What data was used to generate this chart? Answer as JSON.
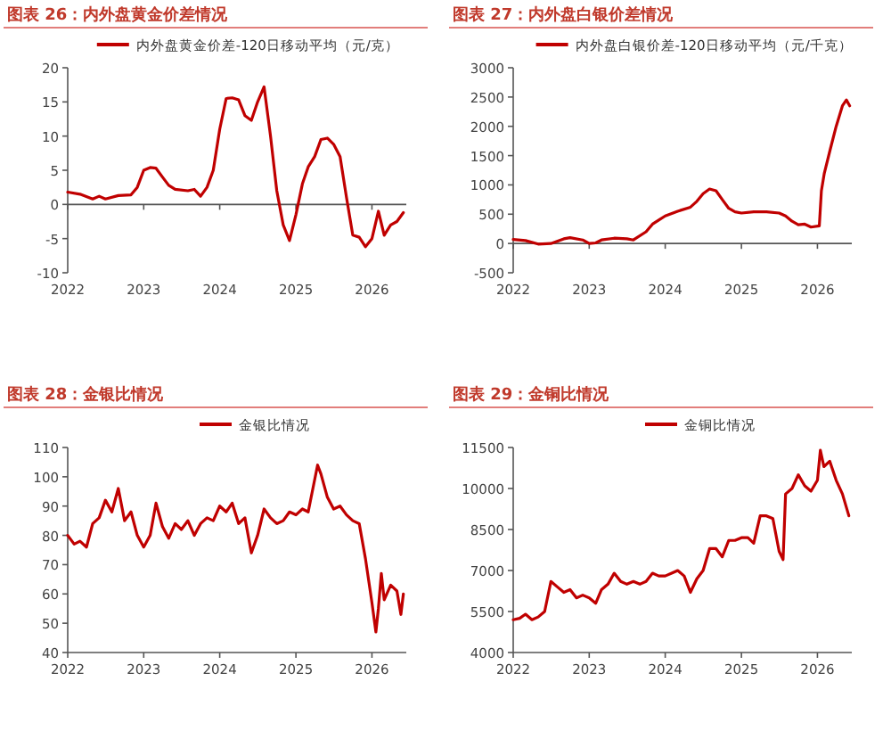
{
  "chart_data": [
    {
      "type": "line",
      "title": "图表 26：内外盘黄金价差情况",
      "legend": "top",
      "xlim": [
        "2022-01-01",
        "2026-06-15"
      ],
      "xticks": [
        "2022",
        "2023",
        "2024",
        "2025",
        "2026"
      ],
      "ylim": [
        -10,
        20
      ],
      "yticks": [
        -10,
        -5,
        0,
        5,
        10,
        15,
        20
      ],
      "x": [
        "2022-01",
        "2022-03",
        "2022-05",
        "2022-06",
        "2022-07",
        "2022-09",
        "2022-11",
        "2022-12",
        "2023-01",
        "2023-02",
        "2023-03",
        "2023-04",
        "2023-05",
        "2023-06",
        "2023-08",
        "2023-09",
        "2023-10",
        "2023-11",
        "2023-12",
        "2024-01",
        "2024-02",
        "2024-03",
        "2024-04",
        "2024-05",
        "2024-06",
        "2024-07",
        "2024-08",
        "2024-09",
        "2024-10",
        "2024-11",
        "2024-12",
        "2025-01",
        "2025-02",
        "2025-03",
        "2025-04",
        "2025-05",
        "2025-06",
        "2025-07",
        "2025-08",
        "2025-09",
        "2025-10",
        "2025-11",
        "2025-12",
        "2026-01",
        "2026-02",
        "2026-03",
        "2026-04",
        "2026-05",
        "2026-06"
      ],
      "series": [
        {
          "name": "内外盘黄金价差-120日移动平均（元/克）",
          "color": "#c00000",
          "values": [
            1.8,
            1.5,
            0.8,
            1.2,
            0.8,
            1.3,
            1.4,
            2.5,
            5,
            5.4,
            5.3,
            4,
            2.8,
            2.2,
            2,
            2.2,
            1.2,
            2.5,
            5,
            11,
            15.5,
            15.6,
            15.3,
            13,
            12.3,
            15,
            17.2,
            10,
            2,
            -3,
            -5.3,
            -1.5,
            3,
            5.5,
            7,
            9.5,
            9.7,
            8.8,
            7,
            1,
            -4.5,
            -4.8,
            -6.2,
            -5,
            -1,
            -4.5,
            -3,
            -2.5,
            -1.2
          ]
        }
      ]
    },
    {
      "type": "line",
      "title": "图表 27：内外盘白银价差情况",
      "legend": "top",
      "xlim": [
        "2022-01-01",
        "2026-06-15"
      ],
      "xticks": [
        "2022",
        "2023",
        "2024",
        "2025",
        "2026"
      ],
      "ylim": [
        -500,
        3000
      ],
      "yticks": [
        -500,
        0,
        500,
        1000,
        1500,
        2000,
        2500,
        3000
      ],
      "x": [
        "2022-01",
        "2022-03",
        "2022-05",
        "2022-07",
        "2022-09",
        "2022-10",
        "2022-12",
        "2023-01",
        "2023-02",
        "2023-03",
        "2023-05",
        "2023-07",
        "2023-08",
        "2023-10",
        "2023-11",
        "2023-12",
        "2024-01",
        "2024-03",
        "2024-05",
        "2024-06",
        "2024-07",
        "2024-08",
        "2024-09",
        "2024-10",
        "2024-11",
        "2024-12",
        "2025-01",
        "2025-03",
        "2025-05",
        "2025-07",
        "2025-08",
        "2025-09",
        "2025-10",
        "2025-11",
        "2025-12",
        "2026-01-10",
        "2026-01-20",
        "2026-02-03",
        "2026-03-03",
        "2026-04-01",
        "2026-05-01",
        "2026-05-20",
        "2026-06-05"
      ],
      "series": [
        {
          "name": "内外盘白银价差-120日移动平均（元/千克）",
          "color": "#c00000",
          "values": [
            70,
            50,
            -10,
            0,
            80,
            100,
            60,
            0,
            10,
            60,
            90,
            80,
            60,
            200,
            330,
            400,
            470,
            550,
            620,
            720,
            850,
            930,
            900,
            750,
            600,
            540,
            520,
            540,
            540,
            520,
            470,
            380,
            320,
            330,
            280,
            300,
            900,
            1200,
            1600,
            2000,
            2350,
            2450,
            2350
          ]
        }
      ]
    },
    {
      "type": "line",
      "title": "图表 28：金银比情况",
      "legend": "top",
      "xlim": [
        "2022-01-01",
        "2026-06-15"
      ],
      "xticks": [
        "2022",
        "2023",
        "2024",
        "2025",
        "2026"
      ],
      "ylim": [
        40,
        110
      ],
      "yticks": [
        40,
        50,
        60,
        70,
        80,
        90,
        100,
        110
      ],
      "x": [
        "2022-01",
        "2022-02",
        "2022-03",
        "2022-04",
        "2022-05",
        "2022-06",
        "2022-07",
        "2022-08",
        "2022-09",
        "2022-10",
        "2022-11",
        "2022-12",
        "2023-01",
        "2023-02",
        "2023-03",
        "2023-04",
        "2023-05",
        "2023-06",
        "2023-07",
        "2023-08",
        "2023-09",
        "2023-10",
        "2023-11",
        "2023-12",
        "2024-01",
        "2024-02",
        "2024-03",
        "2024-04",
        "2024-05",
        "2024-06",
        "2024-07",
        "2024-08",
        "2024-09",
        "2024-10",
        "2024-11",
        "2024-12",
        "2025-01",
        "2025-02",
        "2025-03",
        "2025-04-15",
        "2025-05",
        "2025-06",
        "2025-07",
        "2025-08",
        "2025-09",
        "2025-10",
        "2025-11",
        "2025-12",
        "2026-01",
        "2026-01-20",
        "2026-02",
        "2026-02-15",
        "2026-03",
        "2026-04",
        "2026-05",
        "2026-05-20",
        "2026-06"
      ],
      "series": [
        {
          "name": "金银比情况",
          "color": "#c00000",
          "values": [
            80,
            77,
            78,
            76,
            84,
            86,
            92,
            88,
            96,
            85,
            88,
            80,
            76,
            80,
            91,
            83,
            79,
            84,
            82,
            85,
            80,
            84,
            86,
            85,
            90,
            88,
            91,
            84,
            86,
            74,
            80,
            89,
            86,
            84,
            85,
            88,
            87,
            89,
            88,
            104,
            101,
            93,
            89,
            90,
            87,
            85,
            84,
            72,
            57,
            47,
            55,
            67,
            58,
            63,
            61,
            53,
            60
          ]
        }
      ]
    },
    {
      "type": "line",
      "title": "图表 29：金铜比情况",
      "legend": "top",
      "xlim": [
        "2022-01-01",
        "2026-06-15"
      ],
      "xticks": [
        "2022",
        "2023",
        "2024",
        "2025",
        "2026"
      ],
      "ylim": [
        4000,
        11500
      ],
      "yticks": [
        4000,
        5500,
        7000,
        8500,
        10000,
        11500
      ],
      "x": [
        "2022-01",
        "2022-02",
        "2022-03",
        "2022-04",
        "2022-05",
        "2022-06",
        "2022-07",
        "2022-08",
        "2022-09",
        "2022-10",
        "2022-11",
        "2022-12",
        "2023-01",
        "2023-02",
        "2023-03",
        "2023-04",
        "2023-05",
        "2023-06",
        "2023-07",
        "2023-08",
        "2023-09",
        "2023-10",
        "2023-11",
        "2023-12",
        "2024-01",
        "2024-02",
        "2024-03",
        "2024-04",
        "2024-05",
        "2024-06",
        "2024-07",
        "2024-08",
        "2024-09",
        "2024-10",
        "2024-11",
        "2024-12",
        "2025-01",
        "2025-02",
        "2025-03",
        "2025-04",
        "2025-05",
        "2025-06",
        "2025-07",
        "2025-07-20",
        "2025-08",
        "2025-09",
        "2025-10",
        "2025-11",
        "2025-12",
        "2026-01",
        "2026-01-15",
        "2026-02",
        "2026-03",
        "2026-04",
        "2026-05",
        "2026-06"
      ],
      "series": [
        {
          "name": "金铜比情况",
          "color": "#c00000",
          "values": [
            5200,
            5250,
            5400,
            5200,
            5300,
            5500,
            6600,
            6400,
            6200,
            6300,
            6000,
            6100,
            6000,
            5800,
            6300,
            6500,
            6900,
            6600,
            6500,
            6600,
            6500,
            6600,
            6900,
            6800,
            6800,
            6900,
            7000,
            6800,
            6200,
            6700,
            7000,
            7800,
            7800,
            7500,
            8100,
            8100,
            8200,
            8200,
            8000,
            9000,
            9000,
            8900,
            7700,
            7400,
            9800,
            10000,
            10500,
            10100,
            9900,
            10300,
            11400,
            10800,
            11000,
            10300,
            9800,
            9000
          ]
        }
      ]
    }
  ]
}
